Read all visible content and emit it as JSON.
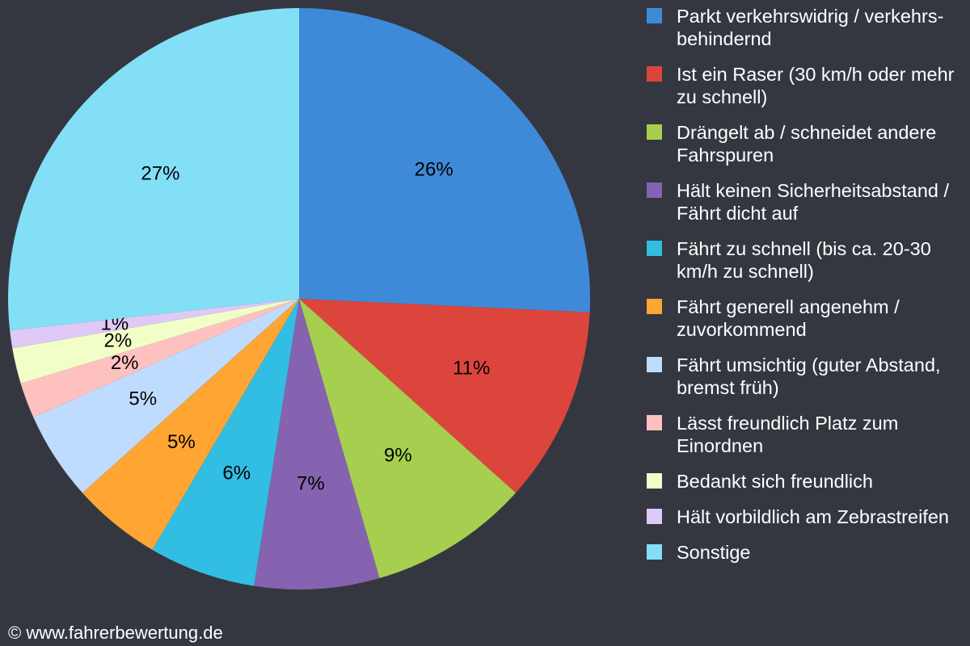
{
  "chart_data": {
    "type": "pie",
    "categories": [
      "Parkt verkehrswidrig / verkehrs-behindernd",
      "Ist ein Raser (30 km/h oder mehr zu schnell)",
      "Drängelt ab / schneidet andere Fahrspuren",
      "Hält keinen Sicherheitsabstand / Fährt dicht auf",
      "Fährt zu schnell (bis ca. 20-30 km/h zu schnell)",
      "Fährt generell angenehm / zuvorkommend",
      "Fährt umsichtig (guter Abstand, bremst früh)",
      "Lässt freundlich Platz zum Einordnen",
      "Bedankt sich freundlich",
      "Hält vorbildlich am Zebrastreifen",
      "Sonstige"
    ],
    "values": [
      26,
      11,
      9,
      7,
      6,
      5,
      5,
      2,
      2,
      1,
      27
    ],
    "value_labels": [
      "26%",
      "11%",
      "9%",
      "7%",
      "6%",
      "5%",
      "5%",
      "2%",
      "2%",
      "1%",
      "27%"
    ],
    "colors": [
      "#3f8ad8",
      "#dc453c",
      "#a7cf4f",
      "#8563b0",
      "#32bde2",
      "#fea534",
      "#bfdcfe",
      "#ffc1c0",
      "#f1fec8",
      "#dfc9f7",
      "#82dff6"
    ],
    "legend": "right",
    "source": "© www.fahrerbewertung.de"
  }
}
